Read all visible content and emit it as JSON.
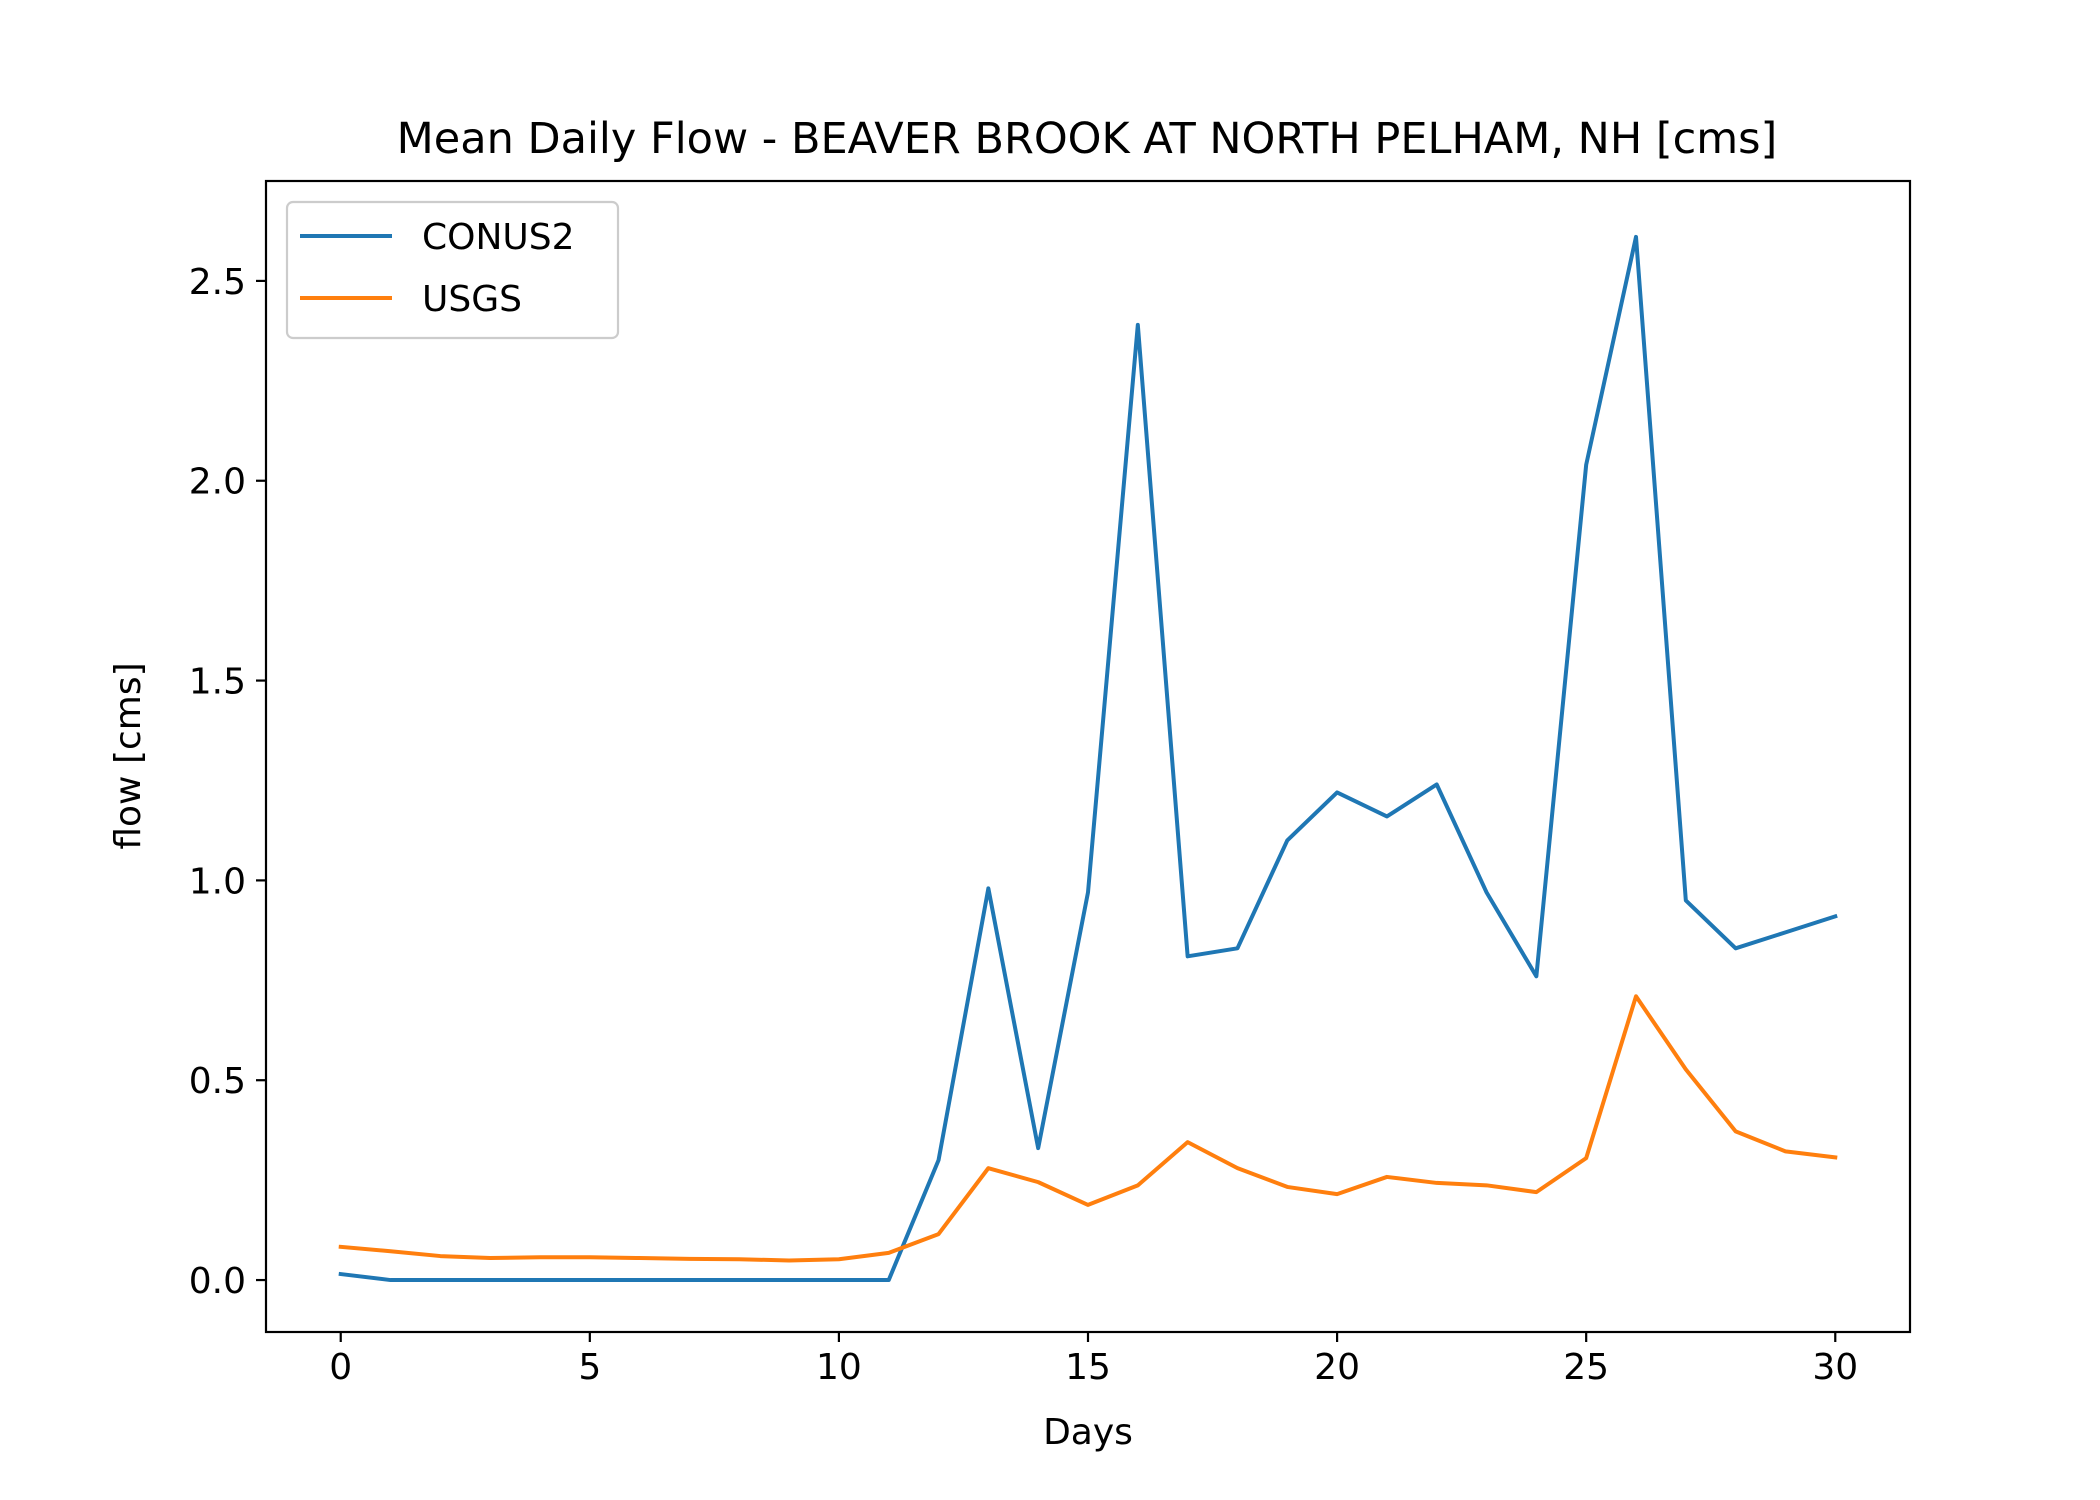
{
  "chart_data": {
    "type": "line",
    "title": "Mean Daily Flow - BEAVER BROOK AT NORTH PELHAM, NH [cms]",
    "xlabel": "Days",
    "ylabel": "flow [cms]",
    "xlim": [
      -1.5,
      31.5
    ],
    "ylim": [
      -0.13,
      2.75
    ],
    "xticks": [
      0,
      5,
      10,
      15,
      20,
      25,
      30
    ],
    "xtick_labels": [
      "0",
      "5",
      "10",
      "15",
      "20",
      "25",
      "30"
    ],
    "yticks": [
      0.0,
      0.5,
      1.0,
      1.5,
      2.0,
      2.5
    ],
    "ytick_labels": [
      "0.0",
      "0.5",
      "1.0",
      "1.5",
      "2.0",
      "2.5"
    ],
    "grid": false,
    "legend_position": "upper left",
    "x": [
      0,
      1,
      2,
      3,
      4,
      5,
      6,
      7,
      8,
      9,
      10,
      11,
      12,
      13,
      14,
      15,
      16,
      17,
      18,
      19,
      20,
      21,
      22,
      23,
      24,
      25,
      26,
      27,
      28,
      29,
      30
    ],
    "series": [
      {
        "name": "CONUS2",
        "color": "#1f77b4",
        "values": [
          0.015,
          0.0,
          0.0,
          0.0,
          0.0,
          0.0,
          0.0,
          0.0,
          0.0,
          0.0,
          0.0,
          0.0,
          0.3,
          0.98,
          0.33,
          0.97,
          2.39,
          0.81,
          0.83,
          1.1,
          1.22,
          1.16,
          1.24,
          0.97,
          0.76,
          2.04,
          2.61,
          0.95,
          0.83,
          0.87,
          0.91
        ]
      },
      {
        "name": "USGS",
        "color": "#ff7f0e",
        "values": [
          0.083,
          0.072,
          0.06,
          0.055,
          0.057,
          0.057,
          0.055,
          0.053,
          0.052,
          0.049,
          0.052,
          0.068,
          0.115,
          0.28,
          0.245,
          0.188,
          0.237,
          0.345,
          0.28,
          0.233,
          0.215,
          0.258,
          0.243,
          0.237,
          0.22,
          0.305,
          0.71,
          0.527,
          0.372,
          0.322,
          0.307
        ]
      }
    ]
  }
}
